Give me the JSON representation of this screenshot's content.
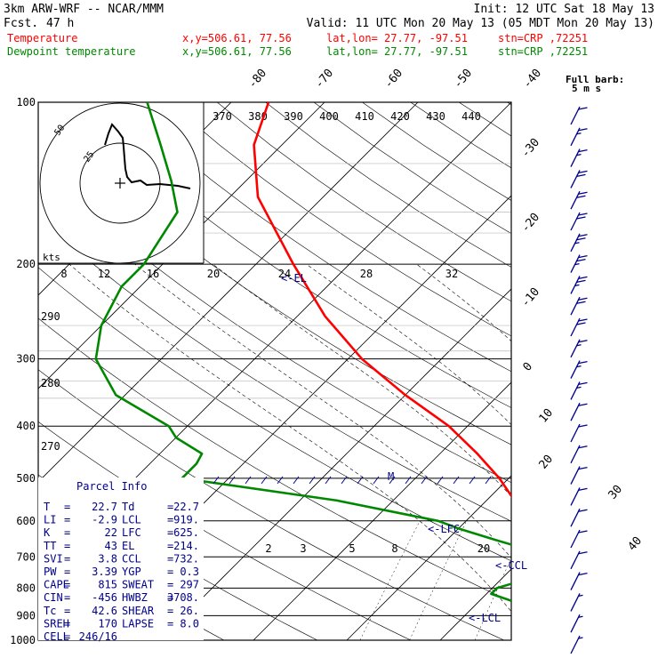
{
  "header": {
    "title": "3km ARW-WRF -- NCAR/MMM",
    "fcst_label": "Fcst.",
    "fcst_value": "47 h",
    "init": "Init: 12 UTC Sat 18 May 13",
    "valid": "Valid: 11 UTC Mon 20 May 13 (05 MDT Mon 20 May 13)"
  },
  "legend": {
    "temperature": {
      "name": "Temperature",
      "xy": "x,y=506.61, 77.56",
      "latlon": "lat,lon= 27.77, -97.51",
      "stn": "stn=CRP ,72251",
      "color": "#ff0000"
    },
    "dewpoint": {
      "name": "Dewpoint temperature",
      "xy": "x,y=506.61, 77.56",
      "latlon": "lat,lon= 27.77, -97.51",
      "stn": "stn=CRP ,72251",
      "color": "#008800"
    }
  },
  "barb_legend": {
    "line1": "Full barb:",
    "line2": "5 m s"
  },
  "chart_data": {
    "type": "line",
    "diagram": "skew-T log-p",
    "ylim": [
      1000,
      100
    ],
    "pressure_ticks": [
      "100",
      "200",
      "300",
      "400",
      "500",
      "600",
      "700",
      "800",
      "900",
      "1000"
    ],
    "isotherm_labels_top": [
      "-80",
      "-70",
      "-60",
      "-50",
      "-40"
    ],
    "isotherm_labels_right": [
      "-30",
      "-20",
      "-10",
      "0",
      "10",
      "20",
      "30",
      "40"
    ],
    "theta_labels": [
      "370",
      "380",
      "390",
      "400",
      "410",
      "420",
      "430",
      "440"
    ],
    "hodograph_speed_label": "kts",
    "hodograph_speed_ticks": [
      "8",
      "12",
      "16",
      "20",
      "24",
      "28",
      "32"
    ],
    "hodograph_ring_labels": [
      "50",
      "25"
    ],
    "mixing_ratio_labels": [
      "2",
      "3",
      "5",
      "8",
      "20"
    ],
    "height_labels": [
      "290",
      "280",
      "270"
    ],
    "annotations": {
      "el": "<-EL",
      "lfc": "<-LFC",
      "ccl": "<-CCL",
      "lcl": "<-LCL",
      "m": "M"
    },
    "series": [
      {
        "name": "Temperature",
        "color": "#ff0000",
        "points": [
          [
            1000,
            23.5
          ],
          [
            960,
            24.5
          ],
          [
            925,
            23.5
          ],
          [
            900,
            21.5
          ],
          [
            850,
            19
          ],
          [
            800,
            15
          ],
          [
            750,
            11.5
          ],
          [
            700,
            7.5
          ],
          [
            650,
            2.5
          ],
          [
            600,
            -2
          ],
          [
            550,
            -7
          ],
          [
            500,
            -11
          ],
          [
            450,
            -16
          ],
          [
            400,
            -22
          ],
          [
            350,
            -30
          ],
          [
            300,
            -38.5
          ],
          [
            250,
            -47
          ],
          [
            200,
            -56
          ],
          [
            150,
            -67
          ],
          [
            120,
            -73
          ],
          [
            100,
            -76
          ]
        ]
      },
      {
        "name": "Dewpoint temperature",
        "color": "#008800",
        "points": [
          [
            1000,
            22.7
          ],
          [
            960,
            19.5
          ],
          [
            930,
            16
          ],
          [
            900,
            11
          ],
          [
            850,
            4
          ],
          [
            820,
            0.5
          ],
          [
            800,
            0.5
          ],
          [
            760,
            3.5
          ],
          [
            730,
            5.5
          ],
          [
            700,
            3.5
          ],
          [
            680,
            0
          ],
          [
            650,
            -5
          ],
          [
            620,
            -10
          ],
          [
            600,
            -13
          ],
          [
            550,
            -26
          ],
          [
            500,
            -45
          ],
          [
            470,
            -45
          ],
          [
            450,
            -45.5
          ],
          [
            420,
            -50
          ],
          [
            400,
            -52
          ],
          [
            350,
            -61
          ],
          [
            300,
            -67
          ],
          [
            260,
            -70
          ],
          [
            220,
            -72
          ],
          [
            200,
            -72
          ],
          [
            160,
            -74
          ],
          [
            140,
            -78
          ],
          [
            120,
            -83
          ],
          [
            100,
            -89
          ]
        ]
      }
    ],
    "wind_barbs_speeds_kt": [
      10,
      15,
      15,
      20,
      20,
      20,
      25,
      25,
      25,
      20,
      20,
      15,
      15,
      15,
      10,
      10,
      10,
      10,
      10,
      10,
      10,
      10,
      10,
      5,
      5,
      5
    ]
  },
  "parcel_info": {
    "title": "Parcel Info",
    "rows": [
      {
        "l1": "T",
        "v1": "22.7",
        "l2": "Td",
        "v2": "22.7"
      },
      {
        "l1": "LI",
        "v1": "-2.9",
        "l2": "LCL",
        "v2": "919."
      },
      {
        "l1": "K",
        "v1": "22",
        "l2": "LFC",
        "v2": "625."
      },
      {
        "l1": "TT",
        "v1": "43",
        "l2": "EL",
        "v2": "214."
      },
      {
        "l1": "SVI",
        "v1": "3.8",
        "l2": "CCL",
        "v2": "732."
      },
      {
        "l1": "PW",
        "v1": "3.39",
        "l2": "YGP",
        "v2": "0.3"
      },
      {
        "l1": "CAPE",
        "v1": "815",
        "l2": "SWEAT",
        "v2": "297"
      },
      {
        "l1": "CIN",
        "v1": "-456",
        "l2": "HWBZ",
        "v2": "3708."
      },
      {
        "l1": "Tc",
        "v1": "42.6",
        "l2": "SHEAR",
        "v2": "26."
      },
      {
        "l1": "SREH",
        "v1": "170",
        "l2": "LAPSE",
        "v2": "8.0"
      },
      {
        "l1": "CELL",
        "v1": "246/16",
        "l2": "",
        "v2": ""
      }
    ]
  }
}
